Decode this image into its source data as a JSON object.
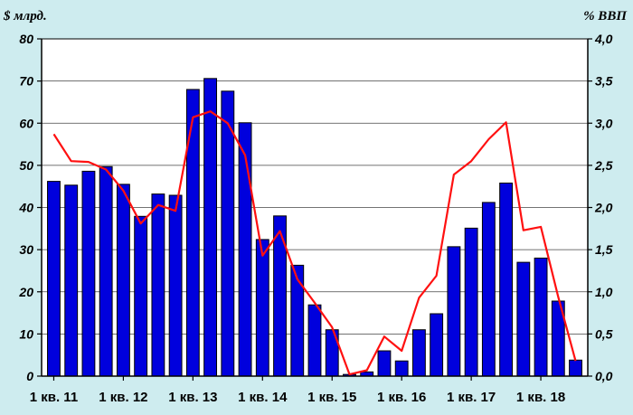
{
  "chart_data": {
    "type": "bar",
    "left_unit": "$ млрд.",
    "right_unit": "% ВВП",
    "x_tick_labels": [
      "1 кв. 11",
      "1 кв. 12",
      "1 кв. 13",
      "1 кв. 14",
      "1 кв. 15",
      "1 кв. 16",
      "1 кв. 17",
      "1 кв. 18"
    ],
    "y_left_ticks": [
      "0",
      "10",
      "20",
      "30",
      "40",
      "50",
      "60",
      "70",
      "80"
    ],
    "y_right_ticks": [
      "0,0",
      "0,5",
      "1,0",
      "1,5",
      "2,0",
      "2,5",
      "3,0",
      "3,5",
      "4,0"
    ],
    "y_left_range": [
      0,
      80
    ],
    "y_right_range": [
      0,
      4
    ],
    "grid": "horizontal",
    "series": [
      {
        "type": "bar",
        "axis": "left",
        "color": "#0000dd",
        "values": [
          46.2,
          45.3,
          48.6,
          49.7,
          45.5,
          37.9,
          43.2,
          42.9,
          68.0,
          70.6,
          67.6,
          60.1,
          32.4,
          38.0,
          26.3,
          16.9,
          11.0,
          0.4,
          1.0,
          6.0,
          3.6,
          11.0,
          14.8,
          30.7,
          35.1,
          41.2,
          45.8,
          27.0,
          28.0,
          17.8,
          3.8
        ]
      },
      {
        "type": "line",
        "axis": "right",
        "color": "#ff1010",
        "values": [
          2.87,
          2.55,
          2.54,
          2.45,
          2.2,
          1.81,
          2.03,
          1.96,
          3.07,
          3.14,
          3.0,
          2.62,
          1.43,
          1.72,
          1.15,
          0.87,
          0.58,
          0.02,
          0.07,
          0.47,
          0.3,
          0.93,
          1.19,
          2.39,
          2.55,
          2.81,
          3.01,
          1.73,
          1.77,
          0.94,
          0.18
        ]
      }
    ]
  }
}
